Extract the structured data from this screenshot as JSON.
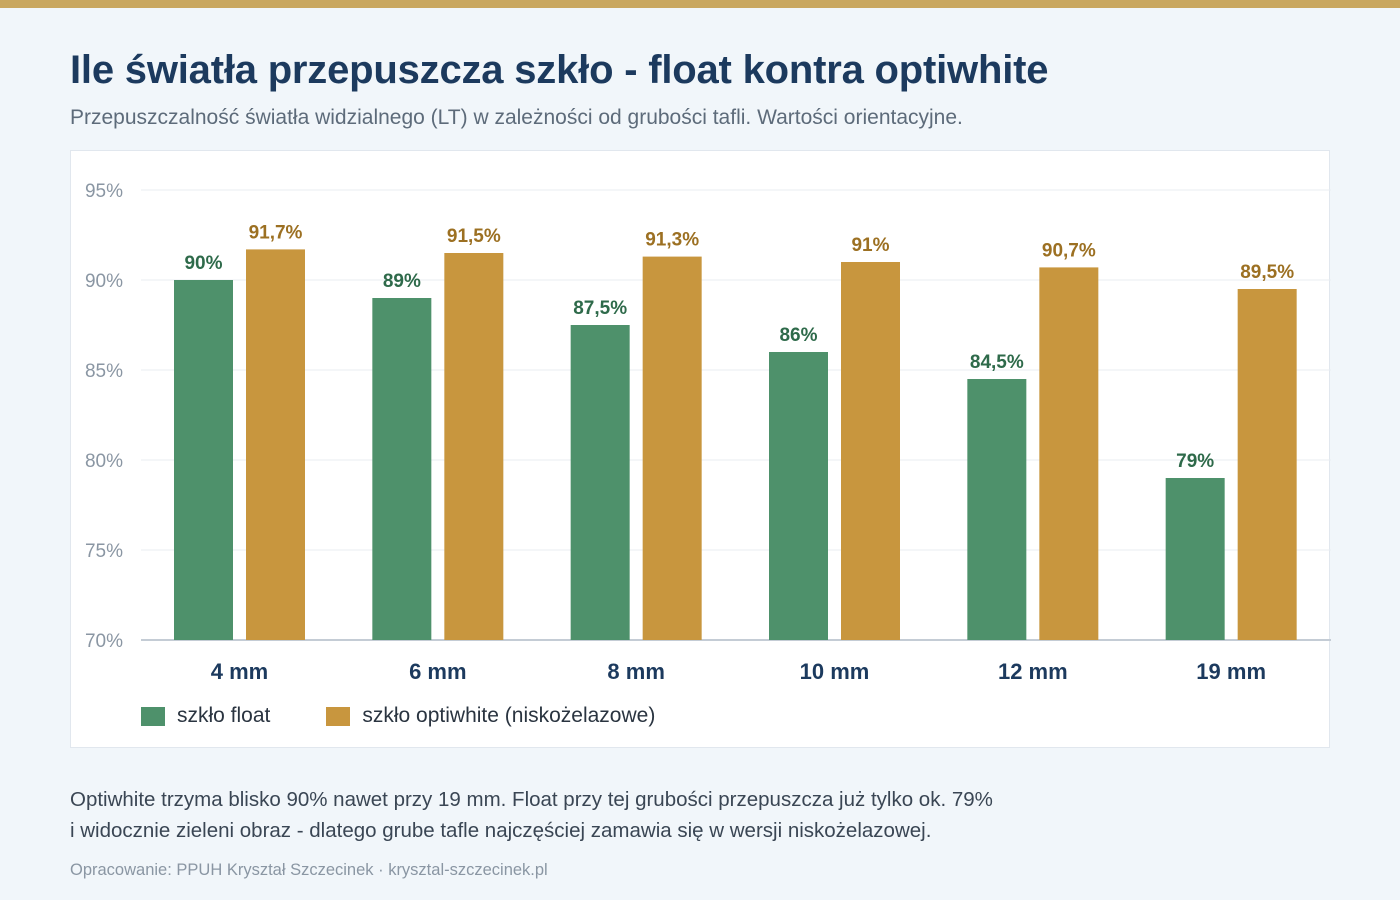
{
  "header": {
    "title": "Ile światła przepuszcza szkło - float kontra optiwhite",
    "subtitle": "Przepuszczalność światła widzialnego (LT) w zależności od grubości tafli. Wartości orientacyjne."
  },
  "colors": {
    "accent": "#c9a75f",
    "float": "#4e916b",
    "optiwhite": "#c8963e",
    "float_label": "#2e6a4a",
    "optiwhite_label": "#9c7022"
  },
  "chart_data": {
    "type": "bar",
    "categories": [
      "4 mm",
      "6 mm",
      "8 mm",
      "10 mm",
      "12 mm",
      "19 mm"
    ],
    "series": [
      {
        "name": "szkło float",
        "values": [
          90,
          89,
          87.5,
          86,
          84.5,
          79
        ],
        "labels": [
          "90%",
          "89%",
          "87,5%",
          "86%",
          "84,5%",
          "79%"
        ]
      },
      {
        "name": "szkło optiwhite (niskożelazowe)",
        "values": [
          91.7,
          91.5,
          91.3,
          91,
          90.7,
          89.5
        ],
        "labels": [
          "91,7%",
          "91,5%",
          "91,3%",
          "91%",
          "90,7%",
          "89,5%"
        ]
      }
    ],
    "ylim": [
      70,
      95
    ],
    "yticks": [
      70,
      75,
      80,
      85,
      90,
      95
    ],
    "ytick_labels": [
      "70%",
      "75%",
      "80%",
      "85%",
      "90%",
      "95%"
    ],
    "grid": true,
    "legend_position": "bottom-left"
  },
  "footer": {
    "note_line1": "Optiwhite trzyma blisko 90% nawet przy 19 mm. Float przy tej grubości przepuszcza już tylko ok. 79%",
    "note_line2": "i widocznie zieleni obraz - dlatego grube tafle najczęściej zamawia się w wersji niskożelazowej.",
    "source": "Opracowanie: PPUH Kryształ Szczecinek · krysztal-szczecinek.pl"
  }
}
